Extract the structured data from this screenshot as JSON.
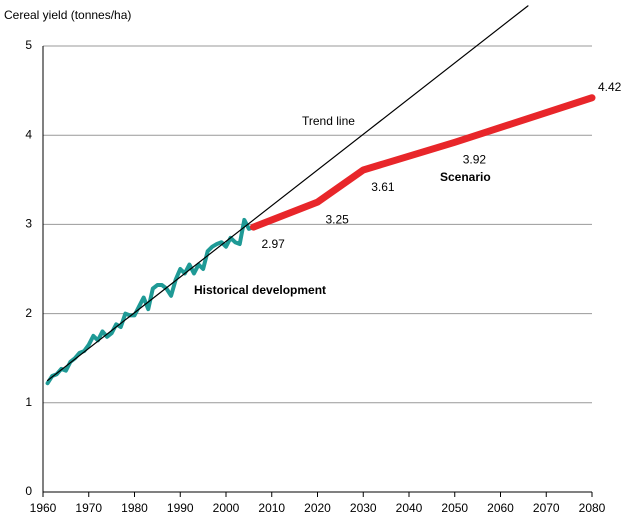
{
  "chart_data": {
    "type": "line",
    "y_axis_label": "Cereal yield (tonnes/ha)",
    "xlim": [
      1960,
      2080
    ],
    "xticks": [
      1960,
      1970,
      1980,
      1990,
      2000,
      2010,
      2020,
      2030,
      2040,
      2050,
      2060,
      2070,
      2080
    ],
    "ylim": [
      0,
      5
    ],
    "yticks": [
      0,
      1,
      2,
      3,
      4,
      5
    ],
    "grid": true,
    "series": [
      {
        "color": "#1f9a96",
        "x": [
          1961,
          1962,
          1963,
          1964,
          1965,
          1966,
          1967,
          1968,
          1969,
          1970,
          1971,
          1972,
          1973,
          1974,
          1975,
          1976,
          1977,
          1978,
          1979,
          1980,
          1981,
          1982,
          1983,
          1984,
          1985,
          1986,
          1987,
          1988,
          1989,
          1990,
          1991,
          1992,
          1993,
          1994,
          1995,
          1996,
          1997,
          1998,
          1999,
          2000,
          2001,
          2002,
          2003,
          2004,
          2005,
          2006
        ],
        "values": [
          1.22,
          1.3,
          1.32,
          1.38,
          1.36,
          1.46,
          1.5,
          1.56,
          1.58,
          1.65,
          1.75,
          1.7,
          1.8,
          1.74,
          1.78,
          1.88,
          1.85,
          2.0,
          1.98,
          1.98,
          2.08,
          2.18,
          2.05,
          2.28,
          2.32,
          2.32,
          2.28,
          2.2,
          2.38,
          2.5,
          2.45,
          2.55,
          2.45,
          2.55,
          2.5,
          2.7,
          2.75,
          2.78,
          2.8,
          2.75,
          2.85,
          2.8,
          2.78,
          3.05,
          2.95,
          2.97
        ]
      },
      {
        "color": "#000000",
        "x": [
          1961,
          2066
        ],
        "values": [
          1.25,
          5.45
        ]
      },
      {
        "color": "#e8262a",
        "x": [
          2006,
          2020,
          2030,
          2050,
          2080
        ],
        "values": [
          2.97,
          3.25,
          3.61,
          3.92,
          4.42
        ]
      }
    ],
    "annotations": [
      "Trend line",
      "Historical development",
      "Scenario"
    ]
  }
}
